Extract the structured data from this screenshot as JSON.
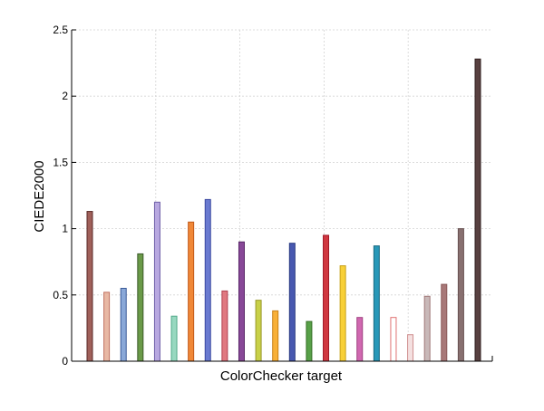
{
  "chart_data": {
    "type": "bar",
    "xlabel": "ColorChecker target",
    "ylabel": "CIEDE2000",
    "ylim": [
      0,
      2.5
    ],
    "yticks": [
      0,
      0.5,
      1,
      1.5,
      2,
      2.5
    ],
    "ytick_labels": [
      "0",
      "0.5",
      "1",
      "1.5",
      "2",
      "2.5"
    ],
    "grid": true,
    "values": [
      1.13,
      0.52,
      0.55,
      0.81,
      1.2,
      0.34,
      1.05,
      1.22,
      0.53,
      0.9,
      0.46,
      0.38,
      0.89,
      0.3,
      0.95,
      0.72,
      0.33,
      0.87,
      0.33,
      0.2,
      0.49,
      0.58,
      1.0,
      2.28
    ],
    "bar_colors": [
      {
        "fill": "#a0605a",
        "edge": "#5a2a28"
      },
      {
        "fill": "#e8b8a4",
        "edge": "#c07060"
      },
      {
        "fill": "#8aa8d8",
        "edge": "#3a5a98"
      },
      {
        "fill": "#6a9a48",
        "edge": "#3a5a28"
      },
      {
        "fill": "#b8a8e0",
        "edge": "#7060a8"
      },
      {
        "fill": "#98d8c0",
        "edge": "#50a888"
      },
      {
        "fill": "#f08838",
        "edge": "#c05818"
      },
      {
        "fill": "#6a7ad0",
        "edge": "#3a48a0"
      },
      {
        "fill": "#e07880",
        "edge": "#b04050"
      },
      {
        "fill": "#884898",
        "edge": "#582868"
      },
      {
        "fill": "#c8d048",
        "edge": "#989828"
      },
      {
        "fill": "#f8b038",
        "edge": "#c88018"
      },
      {
        "fill": "#4858b0",
        "edge": "#283880"
      },
      {
        "fill": "#58a048",
        "edge": "#387028"
      },
      {
        "fill": "#d03840",
        "edge": "#a01828"
      },
      {
        "fill": "#f8d038",
        "edge": "#c8a018"
      },
      {
        "fill": "#d068b0",
        "edge": "#a04080"
      },
      {
        "fill": "#2898b8",
        "edge": "#186880"
      },
      {
        "fill": "#ffffff",
        "edge": "#e07070"
      },
      {
        "fill": "#f4e0e0",
        "edge": "#d09090"
      },
      {
        "fill": "#c8b8b8",
        "edge": "#a07878"
      },
      {
        "fill": "#a87878",
        "edge": "#885858"
      },
      {
        "fill": "#887070",
        "edge": "#685050"
      },
      {
        "fill": "#584040",
        "edge": "#302020"
      }
    ]
  }
}
